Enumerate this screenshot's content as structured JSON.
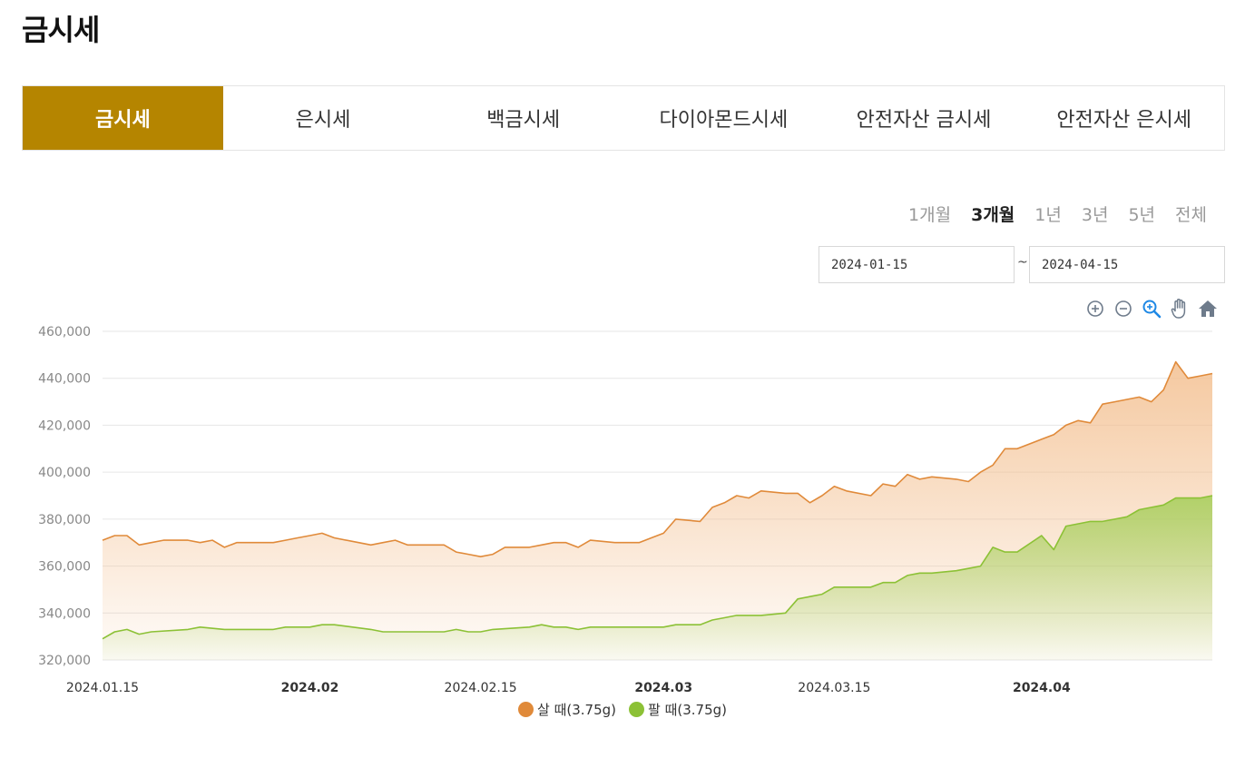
{
  "page": {
    "title": "금시세"
  },
  "tabs": [
    {
      "label": "금시세",
      "active": true
    },
    {
      "label": "은시세",
      "active": false
    },
    {
      "label": "백금시세",
      "active": false
    },
    {
      "label": "다이아몬드시세",
      "active": false
    },
    {
      "label": "안전자산 금시세",
      "active": false
    },
    {
      "label": "안전자산 은시세",
      "active": false
    }
  ],
  "periods": [
    {
      "label": "1개월",
      "active": false
    },
    {
      "label": "3개월",
      "active": true
    },
    {
      "label": "1년",
      "active": false
    },
    {
      "label": "3년",
      "active": false
    },
    {
      "label": "5년",
      "active": false
    },
    {
      "label": "전체",
      "active": false
    }
  ],
  "date_range": {
    "start": "2024-01-15",
    "separator": "~",
    "end": "2024-04-15"
  },
  "toolbar": {
    "icons": [
      "zoom-in-icon",
      "zoom-out-icon",
      "zoom-selection-icon",
      "pan-hand-icon",
      "reset-home-icon"
    ]
  },
  "colors": {
    "accent": "#b58500",
    "buy_line": "#e08a3a",
    "buy_fill": "#f3bf8f",
    "sell_line": "#8cc136",
    "sell_fill": "#a9cf5e",
    "grid": "#e6e6e6",
    "axis_text": "#888888"
  },
  "chart_data": {
    "type": "area",
    "ylim": [
      320000,
      460000
    ],
    "y_ticks": [
      "320,000",
      "340,000",
      "360,000",
      "380,000",
      "400,000",
      "420,000",
      "440,000",
      "460,000"
    ],
    "y_tick_values": [
      320000,
      340000,
      360000,
      380000,
      400000,
      420000,
      440000,
      460000
    ],
    "x_range": [
      "2024-01-15",
      "2024-04-15"
    ],
    "x_ticks": [
      {
        "date": "2024-01-15",
        "label": "2024.01.15",
        "bold": false
      },
      {
        "date": "2024-02-01",
        "label": "2024.02",
        "bold": true
      },
      {
        "date": "2024-02-15",
        "label": "2024.02.15",
        "bold": false
      },
      {
        "date": "2024-03-01",
        "label": "2024.03",
        "bold": true
      },
      {
        "date": "2024-03-15",
        "label": "2024.03.15",
        "bold": false
      },
      {
        "date": "2024-04-01",
        "label": "2024.04",
        "bold": true
      }
    ],
    "series": [
      {
        "name": "살 때(3.75g)",
        "points": [
          [
            "2024-01-15",
            371000
          ],
          [
            "2024-01-16",
            373000
          ],
          [
            "2024-01-17",
            373000
          ],
          [
            "2024-01-18",
            369000
          ],
          [
            "2024-01-19",
            370000
          ],
          [
            "2024-01-20",
            371000
          ],
          [
            "2024-01-22",
            371000
          ],
          [
            "2024-01-23",
            370000
          ],
          [
            "2024-01-24",
            371000
          ],
          [
            "2024-01-25",
            368000
          ],
          [
            "2024-01-26",
            370000
          ],
          [
            "2024-01-29",
            370000
          ],
          [
            "2024-01-30",
            371000
          ],
          [
            "2024-01-31",
            372000
          ],
          [
            "2024-02-01",
            373000
          ],
          [
            "2024-02-02",
            374000
          ],
          [
            "2024-02-03",
            372000
          ],
          [
            "2024-02-05",
            370000
          ],
          [
            "2024-02-06",
            369000
          ],
          [
            "2024-02-07",
            370000
          ],
          [
            "2024-02-08",
            371000
          ],
          [
            "2024-02-09",
            369000
          ],
          [
            "2024-02-12",
            369000
          ],
          [
            "2024-02-13",
            366000
          ],
          [
            "2024-02-14",
            365000
          ],
          [
            "2024-02-15",
            364000
          ],
          [
            "2024-02-16",
            365000
          ],
          [
            "2024-02-17",
            368000
          ],
          [
            "2024-02-19",
            368000
          ],
          [
            "2024-02-20",
            369000
          ],
          [
            "2024-02-21",
            370000
          ],
          [
            "2024-02-22",
            370000
          ],
          [
            "2024-02-23",
            368000
          ],
          [
            "2024-02-24",
            371000
          ],
          [
            "2024-02-26",
            370000
          ],
          [
            "2024-02-27",
            370000
          ],
          [
            "2024-02-28",
            370000
          ],
          [
            "2024-02-29",
            372000
          ],
          [
            "2024-03-01",
            374000
          ],
          [
            "2024-03-02",
            380000
          ],
          [
            "2024-03-04",
            379000
          ],
          [
            "2024-03-05",
            385000
          ],
          [
            "2024-03-06",
            387000
          ],
          [
            "2024-03-07",
            390000
          ],
          [
            "2024-03-08",
            389000
          ],
          [
            "2024-03-09",
            392000
          ],
          [
            "2024-03-11",
            391000
          ],
          [
            "2024-03-12",
            391000
          ],
          [
            "2024-03-13",
            387000
          ],
          [
            "2024-03-14",
            390000
          ],
          [
            "2024-03-15",
            394000
          ],
          [
            "2024-03-16",
            392000
          ],
          [
            "2024-03-18",
            390000
          ],
          [
            "2024-03-19",
            395000
          ],
          [
            "2024-03-20",
            394000
          ],
          [
            "2024-03-21",
            399000
          ],
          [
            "2024-03-22",
            397000
          ],
          [
            "2024-03-23",
            398000
          ],
          [
            "2024-03-25",
            397000
          ],
          [
            "2024-03-26",
            396000
          ],
          [
            "2024-03-27",
            400000
          ],
          [
            "2024-03-28",
            403000
          ],
          [
            "2024-03-29",
            410000
          ],
          [
            "2024-03-30",
            410000
          ],
          [
            "2024-04-01",
            414000
          ],
          [
            "2024-04-02",
            416000
          ],
          [
            "2024-04-03",
            420000
          ],
          [
            "2024-04-04",
            422000
          ],
          [
            "2024-04-05",
            421000
          ],
          [
            "2024-04-06",
            429000
          ],
          [
            "2024-04-07",
            430000
          ],
          [
            "2024-04-08",
            431000
          ],
          [
            "2024-04-09",
            432000
          ],
          [
            "2024-04-10",
            430000
          ],
          [
            "2024-04-11",
            435000
          ],
          [
            "2024-04-12",
            447000
          ],
          [
            "2024-04-13",
            440000
          ],
          [
            "2024-04-14",
            441000
          ],
          [
            "2024-04-15",
            442000
          ]
        ]
      },
      {
        "name": "팔 때(3.75g)",
        "points": [
          [
            "2024-01-15",
            329000
          ],
          [
            "2024-01-16",
            332000
          ],
          [
            "2024-01-17",
            333000
          ],
          [
            "2024-01-18",
            331000
          ],
          [
            "2024-01-19",
            332000
          ],
          [
            "2024-01-22",
            333000
          ],
          [
            "2024-01-23",
            334000
          ],
          [
            "2024-01-25",
            333000
          ],
          [
            "2024-01-29",
            333000
          ],
          [
            "2024-01-30",
            334000
          ],
          [
            "2024-02-01",
            334000
          ],
          [
            "2024-02-02",
            335000
          ],
          [
            "2024-02-03",
            335000
          ],
          [
            "2024-02-06",
            333000
          ],
          [
            "2024-02-07",
            332000
          ],
          [
            "2024-02-12",
            332000
          ],
          [
            "2024-02-13",
            333000
          ],
          [
            "2024-02-14",
            332000
          ],
          [
            "2024-02-15",
            332000
          ],
          [
            "2024-02-16",
            333000
          ],
          [
            "2024-02-19",
            334000
          ],
          [
            "2024-02-20",
            335000
          ],
          [
            "2024-02-21",
            334000
          ],
          [
            "2024-02-22",
            334000
          ],
          [
            "2024-02-23",
            333000
          ],
          [
            "2024-02-24",
            334000
          ],
          [
            "2024-02-29",
            334000
          ],
          [
            "2024-03-01",
            334000
          ],
          [
            "2024-03-02",
            335000
          ],
          [
            "2024-03-04",
            335000
          ],
          [
            "2024-03-05",
            337000
          ],
          [
            "2024-03-06",
            338000
          ],
          [
            "2024-03-07",
            339000
          ],
          [
            "2024-03-08",
            339000
          ],
          [
            "2024-03-09",
            339000
          ],
          [
            "2024-03-11",
            340000
          ],
          [
            "2024-03-12",
            346000
          ],
          [
            "2024-03-13",
            347000
          ],
          [
            "2024-03-14",
            348000
          ],
          [
            "2024-03-15",
            351000
          ],
          [
            "2024-03-16",
            351000
          ],
          [
            "2024-03-18",
            351000
          ],
          [
            "2024-03-19",
            353000
          ],
          [
            "2024-03-20",
            353000
          ],
          [
            "2024-03-21",
            356000
          ],
          [
            "2024-03-22",
            357000
          ],
          [
            "2024-03-23",
            357000
          ],
          [
            "2024-03-25",
            358000
          ],
          [
            "2024-03-26",
            359000
          ],
          [
            "2024-03-27",
            360000
          ],
          [
            "2024-03-28",
            368000
          ],
          [
            "2024-03-29",
            366000
          ],
          [
            "2024-03-30",
            366000
          ],
          [
            "2024-04-01",
            373000
          ],
          [
            "2024-04-02",
            367000
          ],
          [
            "2024-04-03",
            377000
          ],
          [
            "2024-04-04",
            378000
          ],
          [
            "2024-04-05",
            379000
          ],
          [
            "2024-04-06",
            379000
          ],
          [
            "2024-04-07",
            380000
          ],
          [
            "2024-04-08",
            381000
          ],
          [
            "2024-04-09",
            384000
          ],
          [
            "2024-04-10",
            385000
          ],
          [
            "2024-04-11",
            386000
          ],
          [
            "2024-04-12",
            389000
          ],
          [
            "2024-04-13",
            389000
          ],
          [
            "2024-04-14",
            389000
          ],
          [
            "2024-04-15",
            390000
          ]
        ]
      }
    ]
  }
}
